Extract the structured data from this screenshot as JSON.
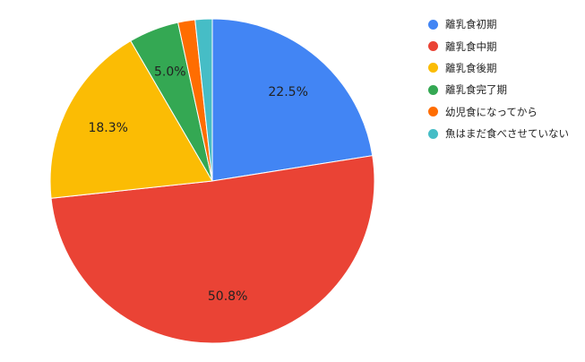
{
  "chart_data": {
    "type": "pie",
    "title": "",
    "legend_position": "right",
    "start_angle_deg": 0,
    "direction": "clockwise",
    "slices": [
      {
        "label": "離乳食初期",
        "value": 22.5,
        "display": "22.5%",
        "color": "#4285F4"
      },
      {
        "label": "離乳食中期",
        "value": 50.8,
        "display": "50.8%",
        "color": "#EA4335"
      },
      {
        "label": "離乳食後期",
        "value": 18.3,
        "display": "18.3%",
        "color": "#FBBC04"
      },
      {
        "label": "離乳食完了期",
        "value": 5.0,
        "display": "5.0%",
        "color": "#34A853"
      },
      {
        "label": "幼児食になってから",
        "value": 1.7,
        "display": "",
        "color": "#FF6D01"
      },
      {
        "label": "魚はまだ食べさせていない",
        "value": 1.7,
        "display": "",
        "color": "#46BDC6"
      }
    ]
  }
}
